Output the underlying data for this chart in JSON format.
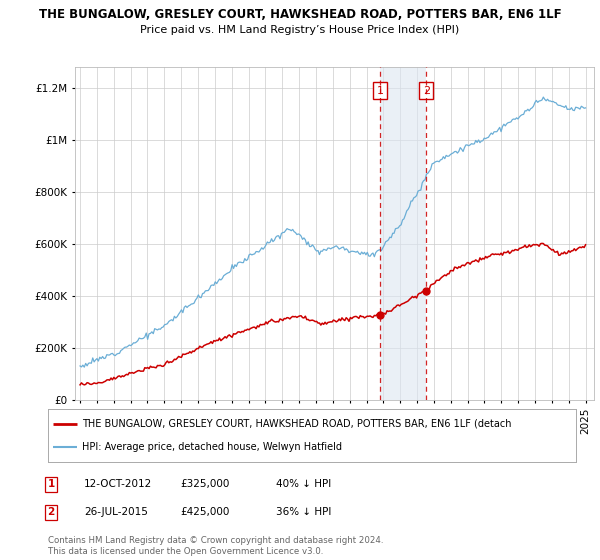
{
  "title": "THE BUNGALOW, GRESLEY COURT, HAWKSHEAD ROAD, POTTERS BAR, EN6 1LF",
  "subtitle": "Price paid vs. HM Land Registry’s House Price Index (HPI)",
  "ytick_values": [
    0,
    200000,
    400000,
    600000,
    800000,
    1000000,
    1200000
  ],
  "ylim": [
    0,
    1280000
  ],
  "hpi_color": "#6baed6",
  "price_color": "#cc0000",
  "transaction1": {
    "date": "12-OCT-2012",
    "price": 325000,
    "label": "1",
    "pct": "40% ↓ HPI",
    "year": 2012.79
  },
  "transaction2": {
    "date": "26-JUL-2015",
    "price": 425000,
    "label": "2",
    "pct": "36% ↓ HPI",
    "year": 2015.55
  },
  "legend_line1": "THE BUNGALOW, GRESLEY COURT, HAWKSHEAD ROAD, POTTERS BAR, EN6 1LF (detach",
  "legend_line2": "HPI: Average price, detached house, Welwyn Hatfield",
  "footnote": "Contains HM Land Registry data © Crown copyright and database right 2024.\nThis data is licensed under the Open Government Licence v3.0.",
  "bg_color": "#ffffff",
  "grid_color": "#cccccc",
  "highlight_color": "#dce6f1"
}
